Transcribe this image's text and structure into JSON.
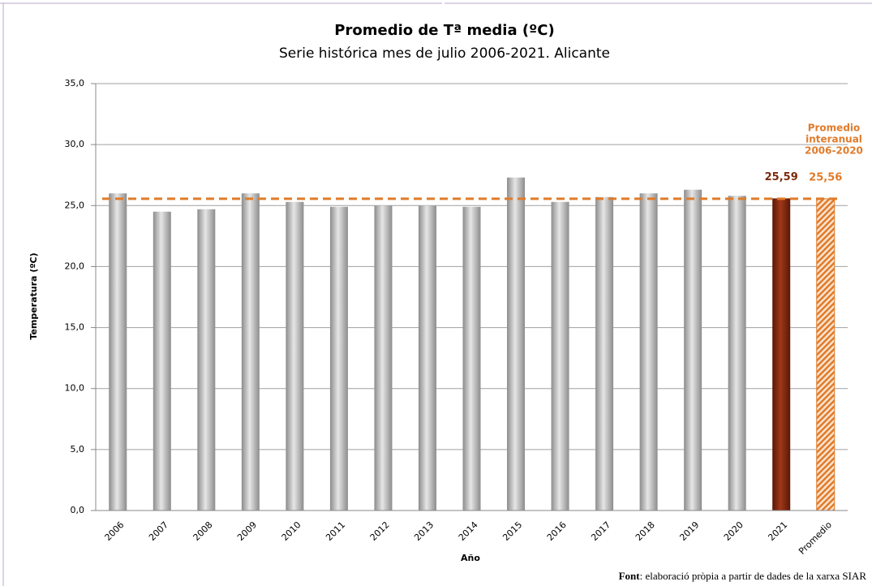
{
  "chart_data": {
    "type": "bar",
    "title": "Promedio de Tª media (ºC)",
    "subtitle": "Serie histórica mes de julio 2006-2021. Alicante",
    "y_label": "Temperatura (ºC)",
    "x_label": "Año",
    "categories": [
      "2006",
      "2007",
      "2008",
      "2009",
      "2010",
      "2011",
      "2012",
      "2013",
      "2014",
      "2015",
      "2016",
      "2017",
      "2018",
      "2019",
      "2020",
      "2021",
      "Promedio"
    ],
    "values": [
      26.0,
      24.5,
      24.7,
      26.0,
      25.3,
      24.9,
      25.0,
      25.0,
      24.9,
      27.3,
      25.3,
      25.7,
      26.0,
      26.3,
      25.8,
      25.59,
      25.56
    ],
    "value_labels": [
      null,
      null,
      null,
      null,
      null,
      null,
      null,
      null,
      null,
      null,
      null,
      null,
      null,
      null,
      null,
      "25,59",
      "25,56"
    ],
    "colors": [
      "#b8b8b8",
      "#b8b8b8",
      "#b8b8b8",
      "#b8b8b8",
      "#b8b8b8",
      "#b8b8b8",
      "#b8b8b8",
      "#b8b8b8",
      "#b8b8b8",
      "#b8b8b8",
      "#b8b8b8",
      "#b8b8b8",
      "#b8b8b8",
      "#b8b8b8",
      "#b8b8b8",
      "#7b2a0c",
      "#e07b2a"
    ],
    "reference_line": {
      "value": 25.56,
      "color": "#e07b2a"
    },
    "annotation": [
      "Promedio",
      "interanual",
      "2006-2020"
    ],
    "ylim": [
      0,
      35
    ],
    "yticks": [
      {
        "value": 0,
        "label": "0,0"
      },
      {
        "value": 5,
        "label": "5,0"
      },
      {
        "value": 10,
        "label": "10,0"
      },
      {
        "value": 15,
        "label": "15,0"
      },
      {
        "value": 20,
        "label": "20,0"
      },
      {
        "value": 25,
        "label": "25,0"
      },
      {
        "value": 30,
        "label": "30,0"
      },
      {
        "value": 35,
        "label": "35,0"
      }
    ],
    "grid": true,
    "source": {
      "label": "Font",
      "text": ": elaboració pròpia a partir de dades de la xarxa SIAR"
    }
  }
}
